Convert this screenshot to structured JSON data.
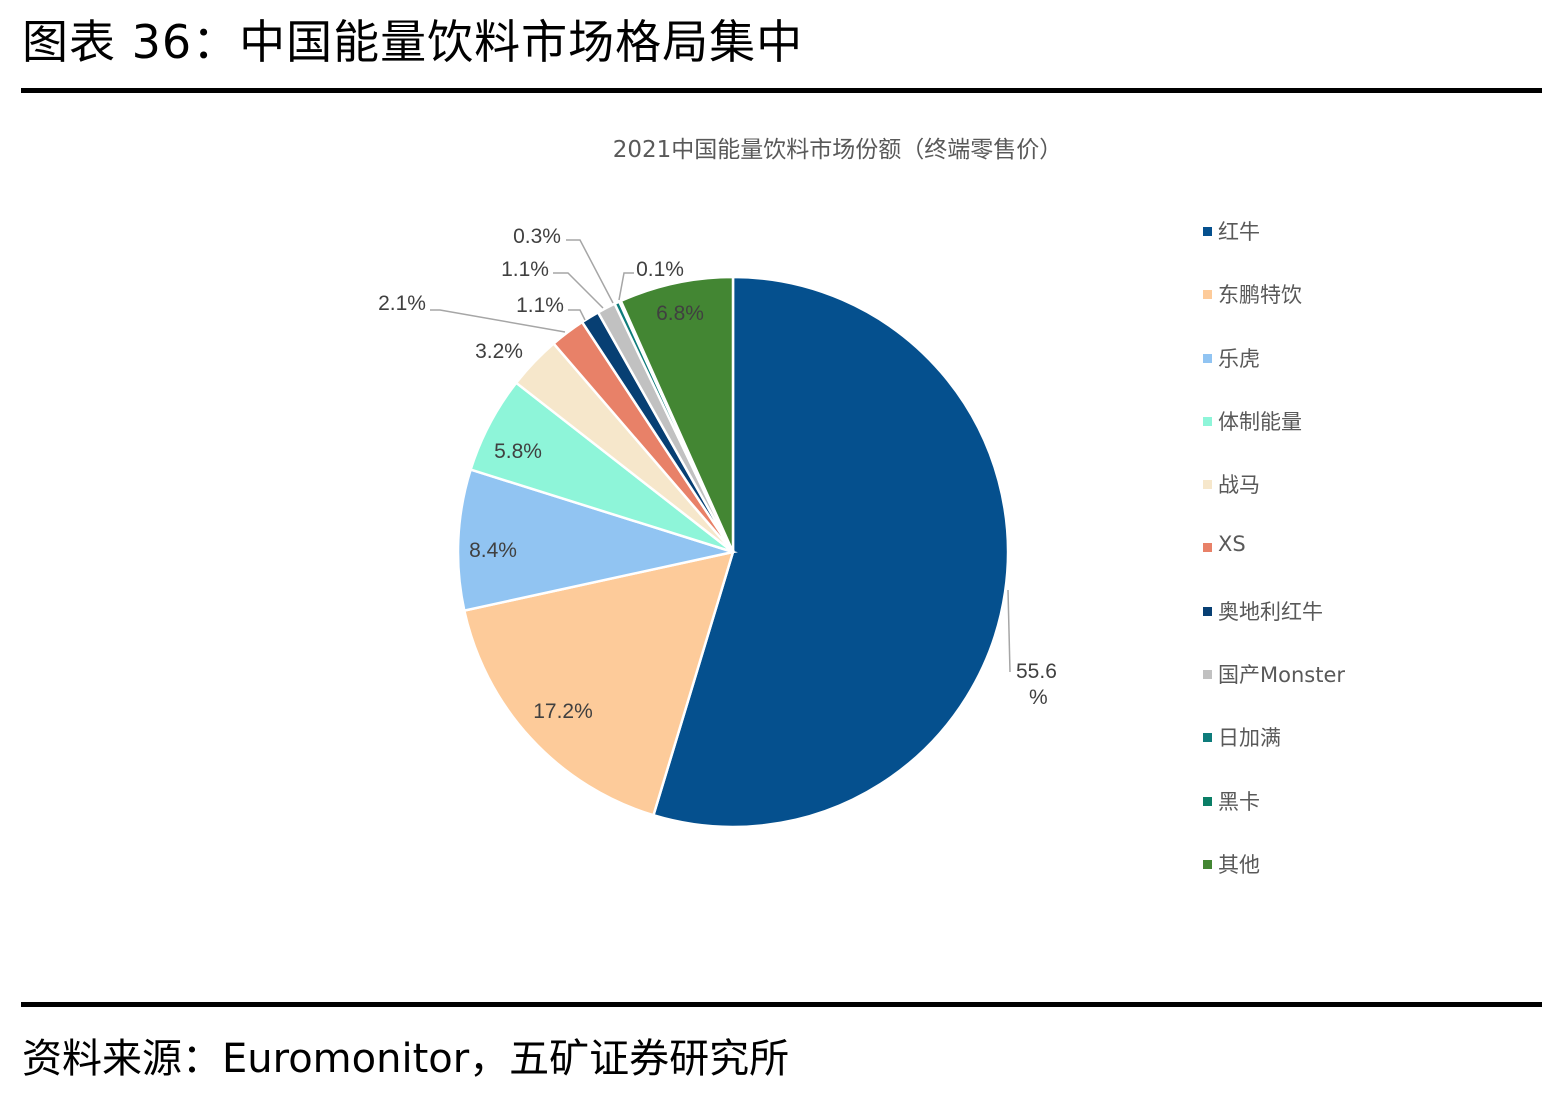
{
  "header": {
    "figure_title": "图表 36：中国能量饮料市场格局集中"
  },
  "footer": {
    "source": "资料来源：Euromonitor，五矿证券研究所"
  },
  "chart_data": {
    "type": "pie",
    "title": "2021中国能量饮料市场份额（终端零售价）",
    "legend_position": "right",
    "unit": "%",
    "categories": [
      "红牛",
      "东鹏特饮",
      "乐虎",
      "体制能量",
      "战马",
      "XS",
      "奥地利红牛",
      "国产Monster",
      "日加满",
      "黑卡",
      "其他"
    ],
    "values": [
      55.6,
      17.2,
      8.4,
      5.8,
      3.2,
      2.1,
      1.1,
      1.1,
      0.3,
      0.1,
      6.8
    ],
    "labels": [
      "55.6%",
      "17.2%",
      "8.4%",
      "5.8%",
      "3.2%",
      "2.1%",
      "1.1%",
      "1.1%",
      "0.3%",
      "0.1%",
      "6.8%"
    ],
    "colors": [
      "#05508E",
      "#FDCB9A",
      "#91C4F2",
      "#8EF5D9",
      "#F6E7CB",
      "#E88168",
      "#073F73",
      "#C1C1C1",
      "#0E7C7B",
      "#0A7E66",
      "#438633"
    ],
    "start_angle_deg": 0,
    "direction": "clockwise"
  },
  "legend": {
    "items": [
      {
        "label": "红牛",
        "color": "#05508E"
      },
      {
        "label": "东鹏特饮",
        "color": "#FDCB9A"
      },
      {
        "label": "乐虎",
        "color": "#91C4F2"
      },
      {
        "label": "体制能量",
        "color": "#8EF5D9"
      },
      {
        "label": "战马",
        "color": "#F6E7CB"
      },
      {
        "label": "XS",
        "color": "#E88168"
      },
      {
        "label": "奥地利红牛",
        "color": "#073F73"
      },
      {
        "label": "国产Monster",
        "color": "#C1C1C1"
      },
      {
        "label": "日加满",
        "color": "#0E7C7B"
      },
      {
        "label": "黑卡",
        "color": "#0A7E66"
      },
      {
        "label": "其他",
        "color": "#438633"
      }
    ]
  }
}
